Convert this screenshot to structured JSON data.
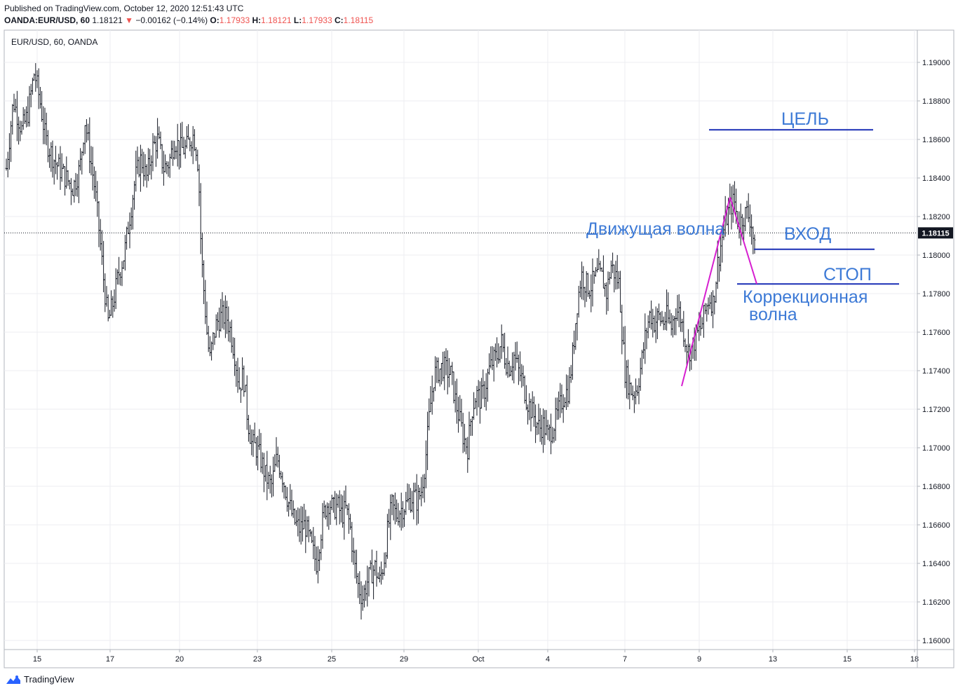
{
  "header": {
    "published": "Published on TradingView.com, October 12, 2020 12:51:43 UTC",
    "symbol": "OANDA:EUR/USD, 60",
    "last": "1.18121",
    "arrow": "▼",
    "change": "−0.00162 (−0.14%)",
    "o_label": "O:",
    "o_value": "1.17933",
    "h_label": "H:",
    "h_value": "1.18121",
    "l_label": "L:",
    "l_value": "1.17933",
    "c_label": "C:",
    "c_value": "1.18115"
  },
  "legend": "EUR/USD, 60, OANDA",
  "footer": {
    "brand": "TradingView"
  },
  "colors": {
    "candle": "#131722",
    "grid": "#eceef2",
    "annotation_text": "#3d7ad6",
    "level_line": "#1a2fb5",
    "wave_line": "#d61fd0",
    "price_tag_bg": "#131722"
  },
  "annotations": {
    "target": "ЦЕЛЬ",
    "entry": "ВХОД",
    "stop": "СТОП",
    "impulse": "Движущая волна",
    "correction_1": "Коррекционная",
    "correction_2": "волна"
  },
  "chart_data": {
    "type": "ohlc",
    "timeframe": "60",
    "ylim": [
      1.1595,
      1.192
    ],
    "y_ticks": [
      "1.19000",
      "1.18800",
      "1.18600",
      "1.18400",
      "1.18200",
      "1.18000",
      "1.17800",
      "1.17600",
      "1.17400",
      "1.17200",
      "1.17000",
      "1.16800",
      "1.16600",
      "1.16400",
      "1.16200",
      "1.16000"
    ],
    "x_ticks": [
      "15",
      "17",
      "20",
      "23",
      "25",
      "29",
      "Oct",
      "4",
      "7",
      "9",
      "13",
      "15",
      "18"
    ],
    "current_price": "1.18115",
    "levels": {
      "target": 1.1865,
      "entry": 1.1803,
      "stop": 1.1785
    },
    "waves": [
      {
        "name": "impulse",
        "from": 1.1732,
        "to": 1.183
      },
      {
        "name": "correction",
        "from": 1.183,
        "to": 1.1785
      }
    ],
    "anchors": [
      [
        0,
        1.1845
      ],
      [
        10,
        1.188
      ],
      [
        22,
        1.1865
      ],
      [
        30,
        1.1872
      ],
      [
        40,
        1.1895
      ],
      [
        48,
        1.188
      ],
      [
        56,
        1.186
      ],
      [
        70,
        1.1848
      ],
      [
        85,
        1.184
      ],
      [
        95,
        1.1835
      ],
      [
        105,
        1.1845
      ],
      [
        112,
        1.187
      ],
      [
        120,
        1.185
      ],
      [
        126,
        1.1835
      ],
      [
        133,
        1.181
      ],
      [
        138,
        1.179
      ],
      [
        145,
        1.1765
      ],
      [
        152,
        1.1775
      ],
      [
        160,
        1.179
      ],
      [
        168,
        1.18
      ],
      [
        176,
        1.182
      ],
      [
        184,
        1.184
      ],
      [
        192,
        1.185
      ],
      [
        200,
        1.184
      ],
      [
        208,
        1.1855
      ],
      [
        216,
        1.186
      ],
      [
        224,
        1.1845
      ],
      [
        232,
        1.1848
      ],
      [
        240,
        1.186
      ],
      [
        248,
        1.1855
      ],
      [
        256,
        1.1855
      ],
      [
        262,
        1.186
      ],
      [
        266,
        1.1862
      ],
      [
        270,
        1.1858
      ],
      [
        274,
        1.1845
      ],
      [
        278,
        1.18
      ],
      [
        282,
        1.178
      ],
      [
        286,
        1.176
      ],
      [
        290,
        1.1745
      ],
      [
        294,
        1.1755
      ],
      [
        300,
        1.1765
      ],
      [
        306,
        1.1768
      ],
      [
        314,
        1.1768
      ],
      [
        320,
        1.176
      ],
      [
        326,
        1.1748
      ],
      [
        332,
        1.1732
      ],
      [
        338,
        1.1738
      ],
      [
        344,
        1.1715
      ],
      [
        350,
        1.1702
      ],
      [
        356,
        1.17
      ],
      [
        362,
        1.1695
      ],
      [
        370,
        1.1685
      ],
      [
        378,
        1.168
      ],
      [
        386,
        1.1695
      ],
      [
        394,
        1.1685
      ],
      [
        402,
        1.1672
      ],
      [
        410,
        1.1662
      ],
      [
        418,
        1.1658
      ],
      [
        426,
        1.166
      ],
      [
        434,
        1.165
      ],
      [
        442,
        1.164
      ],
      [
        448,
        1.1655
      ],
      [
        454,
        1.1668
      ],
      [
        460,
        1.1672
      ],
      [
        466,
        1.1668
      ],
      [
        472,
        1.167
      ],
      [
        478,
        1.1665
      ],
      [
        484,
        1.1668
      ],
      [
        490,
        1.166
      ],
      [
        496,
        1.164
      ],
      [
        502,
        1.1628
      ],
      [
        508,
        1.1622
      ],
      [
        514,
        1.163
      ],
      [
        520,
        1.1635
      ],
      [
        526,
        1.1638
      ],
      [
        532,
        1.163
      ],
      [
        538,
        1.164
      ],
      [
        544,
        1.1658
      ],
      [
        550,
        1.167
      ],
      [
        556,
        1.1665
      ],
      [
        562,
        1.1668
      ],
      [
        568,
        1.167
      ],
      [
        574,
        1.1672
      ],
      [
        580,
        1.1675
      ],
      [
        586,
        1.1672
      ],
      [
        592,
        1.1678
      ],
      [
        598,
        1.1695
      ],
      [
        604,
        1.172
      ],
      [
        610,
        1.1738
      ],
      [
        616,
        1.174
      ],
      [
        622,
        1.1742
      ],
      [
        628,
        1.174
      ],
      [
        634,
        1.1738
      ],
      [
        640,
        1.1725
      ],
      [
        646,
        1.1715
      ],
      [
        652,
        1.1705
      ],
      [
        658,
        1.17
      ],
      [
        664,
        1.172
      ],
      [
        670,
        1.1728
      ],
      [
        676,
        1.1725
      ],
      [
        682,
        1.173
      ],
      [
        688,
        1.174
      ],
      [
        694,
        1.1745
      ],
      [
        700,
        1.1748
      ],
      [
        706,
        1.1755
      ],
      [
        712,
        1.1745
      ],
      [
        718,
        1.1742
      ],
      [
        724,
        1.1748
      ],
      [
        730,
        1.174
      ],
      [
        736,
        1.1735
      ],
      [
        742,
        1.1725
      ],
      [
        748,
        1.172
      ],
      [
        754,
        1.1715
      ],
      [
        760,
        1.171
      ],
      [
        766,
        1.1712
      ],
      [
        772,
        1.1706
      ],
      [
        778,
        1.171
      ],
      [
        784,
        1.1715
      ],
      [
        790,
        1.1722
      ],
      [
        796,
        1.1728
      ],
      [
        802,
        1.173
      ],
      [
        808,
        1.175
      ],
      [
        814,
        1.1775
      ],
      [
        820,
        1.179
      ],
      [
        826,
        1.1785
      ],
      [
        832,
        1.1783
      ],
      [
        838,
        1.1787
      ],
      [
        844,
        1.179
      ],
      [
        850,
        1.1788
      ],
      [
        856,
        1.178
      ],
      [
        862,
        1.1795
      ],
      [
        868,
        1.179
      ],
      [
        874,
        1.1785
      ],
      [
        878,
        1.176
      ],
      [
        882,
        1.174
      ],
      [
        888,
        1.1732
      ],
      [
        894,
        1.1728
      ],
      [
        900,
        1.1732
      ],
      [
        906,
        1.1745
      ],
      [
        912,
        1.176
      ],
      [
        918,
        1.177
      ],
      [
        924,
        1.1765
      ],
      [
        930,
        1.1768
      ],
      [
        936,
        1.1765
      ],
      [
        942,
        1.1768
      ],
      [
        948,
        1.1762
      ],
      [
        954,
        1.1772
      ],
      [
        960,
        1.177
      ],
      [
        966,
        1.176
      ],
      [
        972,
        1.175
      ],
      [
        978,
        1.1752
      ],
      [
        984,
        1.1758
      ],
      [
        990,
        1.1762
      ],
      [
        996,
        1.177
      ],
      [
        1002,
        1.1778
      ],
      [
        1008,
        1.1775
      ],
      [
        1014,
        1.1795
      ],
      [
        1020,
        1.1808
      ],
      [
        1026,
        1.1818
      ],
      [
        1032,
        1.1825
      ],
      [
        1038,
        1.1828
      ],
      [
        1044,
        1.1815
      ],
      [
        1050,
        1.182
      ],
      [
        1056,
        1.1822
      ],
      [
        1062,
        1.1818
      ],
      [
        1066,
        1.1805
      ],
      [
        1070,
        1.1795
      ],
      [
        1074,
        1.1812
      ]
    ]
  }
}
